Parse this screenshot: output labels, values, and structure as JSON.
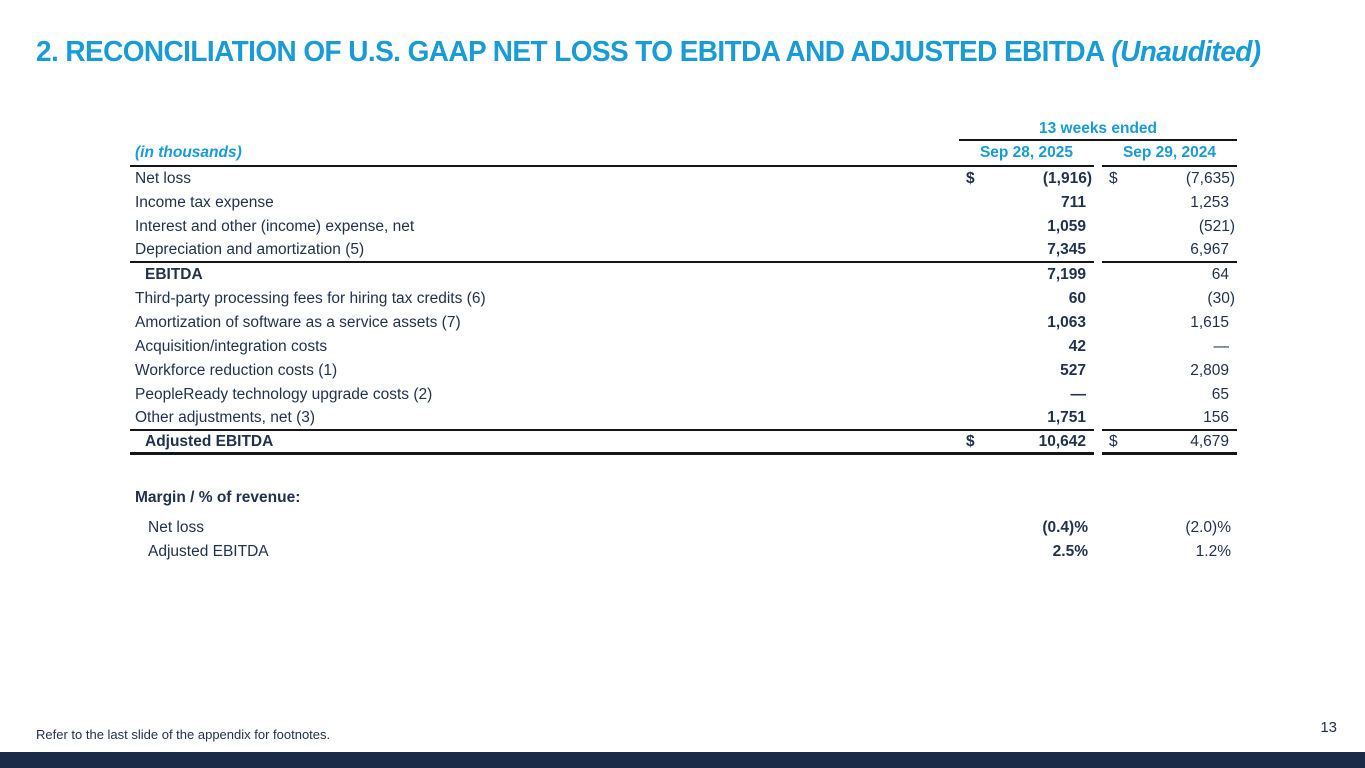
{
  "slide": {
    "title_main": "2. RECONCILIATION OF U.S. GAAP NET LOSS TO EBITDA AND ADJUSTED EBITDA",
    "title_suffix": "(Unaudited)",
    "footnote": "Refer to the last slide of the appendix for footnotes.",
    "page_number": "13"
  },
  "colors": {
    "accent": "#189bd7",
    "navy": "#22324e",
    "bar": "#1b2a47",
    "line": "#14161a"
  },
  "table": {
    "period_header": "13 weeks ended",
    "units_label": "(in thousands)",
    "col_2025": "Sep 28, 2025",
    "col_2024": "Sep 29, 2024",
    "rows": [
      {
        "label": "Net loss",
        "dollar": true,
        "v25": "(1,916)",
        "v24": "(7,635)"
      },
      {
        "label": "Income tax expense",
        "v25": "711",
        "v24": "1,253"
      },
      {
        "label": "Interest and other (income) expense, net",
        "v25": "1,059",
        "v24": "(521)"
      },
      {
        "label": "Depreciation and amortization (5)",
        "v25": "7,345",
        "v24": "6,967",
        "rule_below": true
      },
      {
        "label": "EBITDA",
        "bold": true,
        "indent": true,
        "v25": "7,199",
        "v24": "64"
      },
      {
        "label": "Third-party processing fees for hiring tax credits (6)",
        "v25": "60",
        "v24": "(30)"
      },
      {
        "label": "Amortization of software as a service assets (7)",
        "v25": "1,063",
        "v24": "1,615"
      },
      {
        "label": "Acquisition/integration costs",
        "v25": "42",
        "v24": "—"
      },
      {
        "label": "Workforce reduction costs (1)",
        "v25": "527",
        "v24": "2,809"
      },
      {
        "label": "PeopleReady technology upgrade costs (2)",
        "v25": "—",
        "v24": "65"
      },
      {
        "label": "Other adjustments, net (3)",
        "v25": "1,751",
        "v24": "156",
        "rule_below": true
      },
      {
        "label": "Adjusted EBITDA",
        "bold": true,
        "indent": true,
        "dollar": true,
        "v25": "10,642",
        "v24": "4,679",
        "total": true
      }
    ]
  },
  "margin_section": {
    "header": "Margin / % of revenue:",
    "rows": [
      {
        "label": "Net loss",
        "v25": "(0.4)%",
        "v24": "(2.0)%"
      },
      {
        "label": "Adjusted EBITDA",
        "v25": "2.5%",
        "v24": "1.2%"
      }
    ]
  }
}
